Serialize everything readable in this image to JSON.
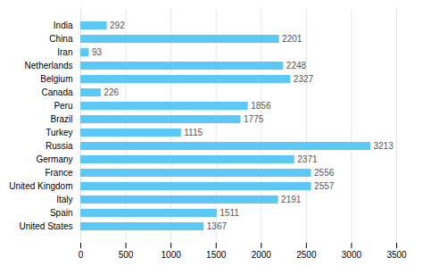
{
  "chart_data": {
    "type": "bar",
    "orientation": "horizontal",
    "categories": [
      "United States",
      "Spain",
      "Italy",
      "United Kingdom",
      "France",
      "Germany",
      "Russia",
      "Turkey",
      "Brazil",
      "Peru",
      "Canada",
      "Belgium",
      "Netherlands",
      "Iran",
      "China",
      "India"
    ],
    "values": [
      1367,
      1511,
      2191,
      2557,
      2556,
      2371,
      3213,
      1115,
      1775,
      1856,
      226,
      2327,
      2248,
      93,
      2201,
      292
    ],
    "color": "#5BC8F5",
    "xlim": [
      0,
      3500
    ],
    "xticks": [
      0,
      500,
      1000,
      1500,
      2000,
      2500,
      3000,
      3500
    ],
    "grid": true,
    "data_labels": true
  }
}
